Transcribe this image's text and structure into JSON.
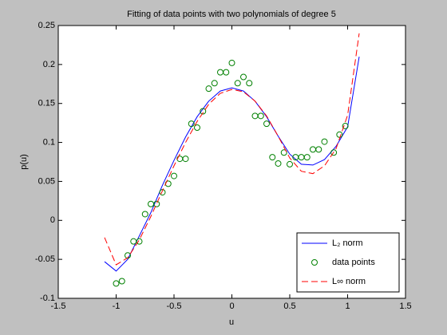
{
  "chart_data": {
    "type": "line",
    "title": "Fitting of data points with two polynomials of degree 5",
    "xlabel": "u",
    "ylabel": "p(u)",
    "xlim": [
      -1.5,
      1.5
    ],
    "xticks": [
      -1.5,
      -1,
      -0.5,
      0,
      0.5,
      1,
      1.5
    ],
    "ylim": [
      -0.1,
      0.25
    ],
    "yticks": [
      -0.1,
      -0.05,
      0,
      0.05,
      0.1,
      0.15,
      0.2,
      0.25
    ],
    "legend": "lower right",
    "grid": false,
    "series": [
      {
        "name": "L₂ norm",
        "color": "#0000ff",
        "style": "solid",
        "x": [
          -1.1,
          -1.0,
          -0.9,
          -0.8,
          -0.7,
          -0.6,
          -0.5,
          -0.4,
          -0.3,
          -0.2,
          -0.1,
          0,
          0.1,
          0.2,
          0.3,
          0.4,
          0.5,
          0.6,
          0.7,
          0.8,
          0.9,
          1.0,
          1.1
        ],
        "values": [
          -0.053,
          -0.065,
          -0.05,
          -0.02,
          0.01,
          0.045,
          0.077,
          0.107,
          0.133,
          0.153,
          0.166,
          0.17,
          0.166,
          0.153,
          0.133,
          0.108,
          0.085,
          0.072,
          0.071,
          0.078,
          0.095,
          0.12,
          0.21
        ]
      },
      {
        "name": "data points",
        "color": "#008000",
        "style": "marker",
        "x": [
          -1.0,
          -0.95,
          -0.9,
          -0.85,
          -0.8,
          -0.75,
          -0.7,
          -0.65,
          -0.6,
          -0.55,
          -0.5,
          -0.45,
          -0.4,
          -0.35,
          -0.3,
          -0.25,
          -0.2,
          -0.15,
          -0.1,
          -0.05,
          0,
          0.05,
          0.1,
          0.15,
          0.2,
          0.25,
          0.3,
          0.35,
          0.4,
          0.45,
          0.5,
          0.55,
          0.6,
          0.65,
          0.7,
          0.75,
          0.8,
          0.88,
          0.93,
          0.98
        ],
        "values": [
          -0.081,
          -0.078,
          -0.045,
          -0.027,
          -0.027,
          0.008,
          0.021,
          0.021,
          0.036,
          0.047,
          0.057,
          0.079,
          0.079,
          0.124,
          0.119,
          0.14,
          0.169,
          0.176,
          0.19,
          0.19,
          0.202,
          0.176,
          0.184,
          0.176,
          0.134,
          0.134,
          0.124,
          0.081,
          0.073,
          0.087,
          0.072,
          0.081,
          0.081,
          0.081,
          0.091,
          0.091,
          0.101,
          0.087,
          0.11,
          0.121
        ]
      },
      {
        "name": "L∞ norm",
        "color": "#ff0000",
        "style": "dashed",
        "x": [
          -1.1,
          -1.0,
          -0.9,
          -0.8,
          -0.7,
          -0.6,
          -0.5,
          -0.4,
          -0.3,
          -0.2,
          -0.1,
          0,
          0.1,
          0.2,
          0.3,
          0.4,
          0.5,
          0.6,
          0.7,
          0.8,
          0.9,
          1.0,
          1.1
        ],
        "values": [
          -0.022,
          -0.057,
          -0.048,
          -0.025,
          0.005,
          0.038,
          0.07,
          0.1,
          0.127,
          0.149,
          0.163,
          0.168,
          0.165,
          0.153,
          0.134,
          0.108,
          0.08,
          0.063,
          0.06,
          0.07,
          0.092,
          0.135,
          0.24
        ]
      }
    ]
  }
}
